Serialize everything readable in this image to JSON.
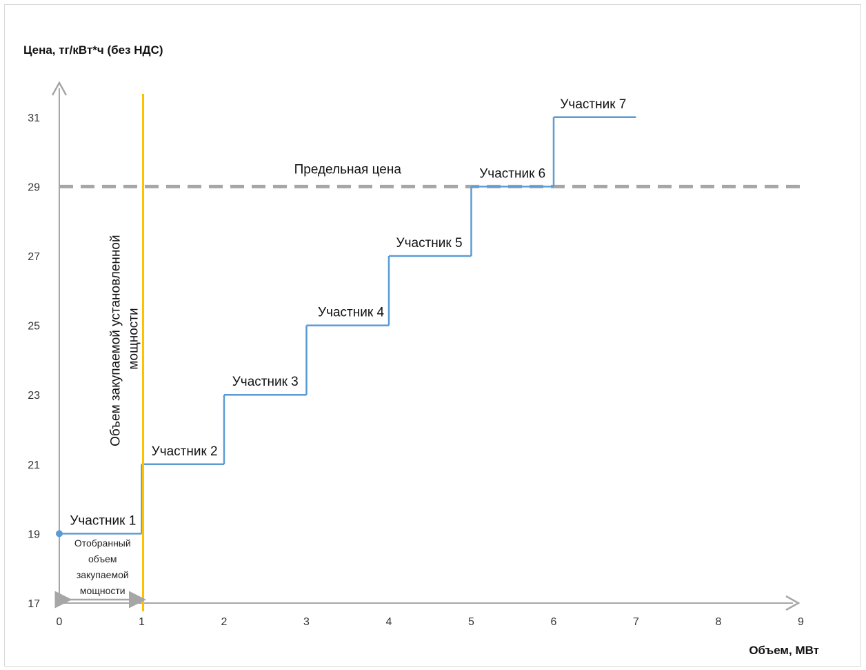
{
  "chart_data": {
    "type": "line",
    "step": true,
    "ylabel": "Цена, тг/кВт*ч (без НДС)",
    "xlabel": "Объем, МВт",
    "xlim": [
      0,
      9
    ],
    "ylim": [
      17,
      32
    ],
    "xticks": [
      0,
      1,
      2,
      3,
      4,
      5,
      6,
      7,
      8,
      9
    ],
    "yticks": [
      17,
      19,
      21,
      23,
      25,
      27,
      29,
      31
    ],
    "grid": false,
    "series": [
      {
        "color": "#5b9bd5",
        "steps": [
          {
            "x0": 0,
            "x1": 1,
            "y": 19,
            "label": "Участник 1"
          },
          {
            "x0": 1,
            "x1": 2,
            "y": 21,
            "label": "Участник 2"
          },
          {
            "x0": 2,
            "x1": 3,
            "y": 23,
            "label": "Участник 3"
          },
          {
            "x0": 3,
            "x1": 4,
            "y": 25,
            "label": "Участник 4"
          },
          {
            "x0": 4,
            "x1": 5,
            "y": 27,
            "label": "Участник 5"
          },
          {
            "x0": 5,
            "x1": 6,
            "y": 29,
            "label": "Участник 6"
          },
          {
            "x0": 6,
            "x1": 7,
            "y": 31,
            "label": "Участник 7"
          }
        ]
      }
    ],
    "reference_lines": [
      {
        "orientation": "horizontal",
        "y": 29,
        "label": "Предельная цена",
        "color": "#a6a6a6",
        "style": "dashed"
      },
      {
        "orientation": "vertical",
        "x": 1,
        "label": "Объем закупаемой установленной мощности",
        "color": "#ffc000",
        "style": "solid"
      }
    ],
    "annotations": [
      {
        "type": "double-arrow",
        "x0": 0,
        "x1": 1,
        "y": 17.2,
        "label": "Отобранный объем закупаемой мощности",
        "lines": [
          "Отобранный",
          "объем",
          "закупаемой",
          "мощности"
        ],
        "color": "#a6a6a6"
      }
    ]
  }
}
